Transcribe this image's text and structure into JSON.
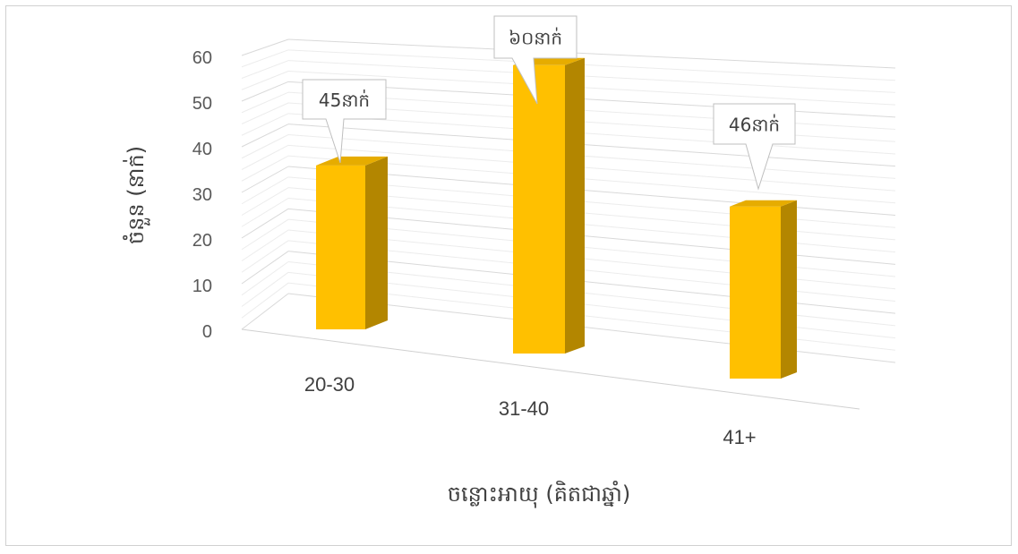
{
  "chart_data": {
    "type": "bar",
    "categories": [
      "20-30",
      "31-40",
      "41+"
    ],
    "values": [
      45,
      60,
      46
    ],
    "data_labels": [
      "45នាក់",
      "៦០នាក់",
      "46នាក់"
    ],
    "xlabel": "ចន្លោះអាយុ (គិតជាឆ្នាំ)",
    "ylabel": "ចំនួន (នាក់)",
    "ylim": [
      0,
      60
    ],
    "yticks": [
      "0",
      "10",
      "20",
      "30",
      "40",
      "50",
      "60"
    ],
    "grid": true,
    "legend": "none",
    "style": "3d-column",
    "bar_color": "#ffc000",
    "bar_side_color": "#b38600"
  }
}
